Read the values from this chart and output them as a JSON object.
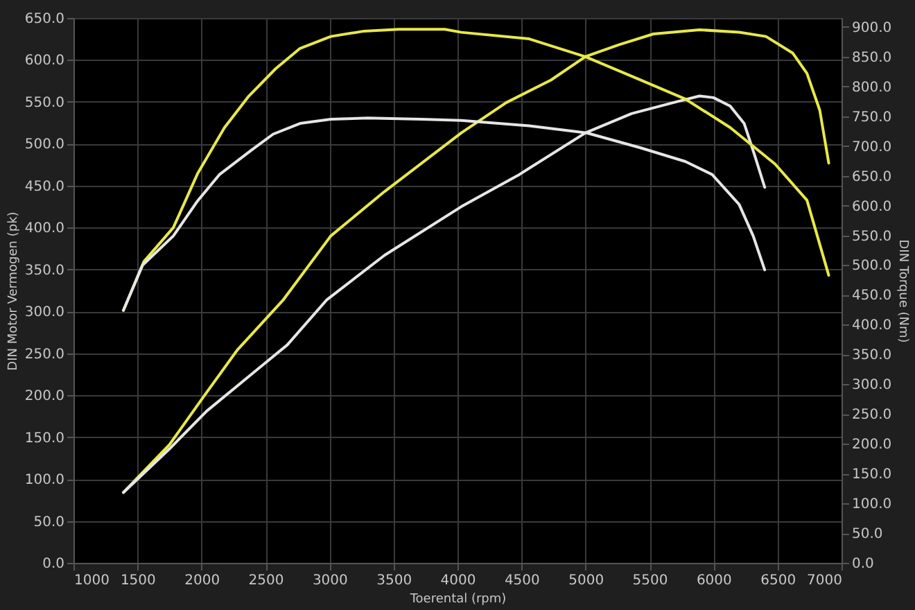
{
  "chart_data": {
    "type": "line",
    "xlabel": "Toerental (rpm)",
    "ylabel": "DIN Motor Vermogen (pk)",
    "y2label": "DIN Torque (Nm)",
    "xlim": [
      1000,
      7000
    ],
    "xticks": [
      1000,
      1500,
      2000,
      2500,
      3000,
      3500,
      4000,
      4500,
      5000,
      5500,
      6000,
      6500,
      7000
    ],
    "ylim": [
      0,
      650
    ],
    "yticks": [
      {
        "value": 0,
        "label": "0.0"
      },
      {
        "value": 50,
        "label": "50.0"
      },
      {
        "value": 100,
        "label": "100.0"
      },
      {
        "value": 150,
        "label": "150.0"
      },
      {
        "value": 200,
        "label": "200.0"
      },
      {
        "value": 250,
        "label": "250.0"
      },
      {
        "value": 300,
        "label": "300.0"
      },
      {
        "value": 350,
        "label": "350.0"
      },
      {
        "value": 400,
        "label": "400.0"
      },
      {
        "value": 450,
        "label": "450.0"
      },
      {
        "value": 500,
        "label": "500.0"
      },
      {
        "value": 550,
        "label": "550.0"
      },
      {
        "value": 600,
        "label": "600.0"
      },
      {
        "value": 650,
        "label": "650.0"
      }
    ],
    "y2lim": [
      0,
      915
    ],
    "y2ticks": [
      {
        "value": 0,
        "label": "0.0"
      },
      {
        "value": 50,
        "label": "50.0"
      },
      {
        "value": 100,
        "label": "100.0"
      },
      {
        "value": 150,
        "label": "150.0"
      },
      {
        "value": 200,
        "label": "200.0"
      },
      {
        "value": 250,
        "label": "250.0"
      },
      {
        "value": 300,
        "label": "300.0"
      },
      {
        "value": 350,
        "label": "350.0"
      },
      {
        "value": 400,
        "label": "400.0"
      },
      {
        "value": 450,
        "label": "450.0"
      },
      {
        "value": 500,
        "label": "500.0"
      },
      {
        "value": 550,
        "label": "550.0"
      },
      {
        "value": 600,
        "label": "600.0"
      },
      {
        "value": 650,
        "label": "650.0"
      },
      {
        "value": 700,
        "label": "700.0"
      },
      {
        "value": 750,
        "label": "750.0"
      },
      {
        "value": 800,
        "label": "800.0"
      },
      {
        "value": 850,
        "label": "850.0"
      },
      {
        "value": 900,
        "label": "900.0"
      }
    ],
    "grid": true,
    "legend": false,
    "marker": "none",
    "line_style": "solid",
    "series": [
      {
        "color": "#e8e84a",
        "x": [
          1390,
          1750,
          2010,
          2280,
          2640,
          3010,
          3430,
          4030,
          4380,
          4730,
          5000,
          5260,
          5530,
          5890,
          6200,
          6410,
          6620,
          6730,
          6830,
          6900
        ],
        "values": [
          84,
          141,
          197,
          254,
          314,
          390,
          443,
          513,
          549,
          576,
          604,
          618,
          631,
          636,
          633,
          628,
          608,
          584,
          540,
          477
        ]
      },
      {
        "color": "#e6e6e6",
        "x": [
          1390,
          1750,
          2040,
          2390,
          2670,
          2980,
          3430,
          4030,
          4480,
          5000,
          5360,
          5710,
          5890,
          6000,
          6130,
          6240,
          6320,
          6400
        ],
        "values": [
          84,
          136,
          181,
          225,
          260,
          314,
          367,
          425,
          463,
          513,
          536,
          550,
          557,
          555,
          545,
          524,
          487,
          448
        ]
      },
      {
        "color": "#e8e84a",
        "axis": "y2",
        "x": [
          1390,
          1550,
          1780,
          1970,
          2180,
          2370,
          2580,
          2770,
          3010,
          3270,
          3540,
          3900,
          4030,
          4560,
          5000,
          5430,
          5780,
          6130,
          6480,
          6730,
          6900
        ],
        "values": [
          424,
          506,
          563,
          654,
          731,
          784,
          830,
          864,
          884,
          893,
          896,
          896,
          891,
          880,
          850,
          811,
          779,
          731,
          670,
          609,
          483
        ]
      },
      {
        "color": "#e6e6e6",
        "axis": "y2",
        "x": [
          1390,
          1540,
          1780,
          1970,
          2140,
          2390,
          2560,
          2770,
          3010,
          3300,
          3720,
          4030,
          4560,
          5010,
          5430,
          5780,
          5990,
          6200,
          6310,
          6400
        ],
        "values": [
          424,
          500,
          549,
          608,
          652,
          693,
          720,
          738,
          745,
          747,
          745,
          743,
          734,
          722,
          697,
          674,
          652,
          602,
          549,
          492
        ]
      }
    ]
  }
}
